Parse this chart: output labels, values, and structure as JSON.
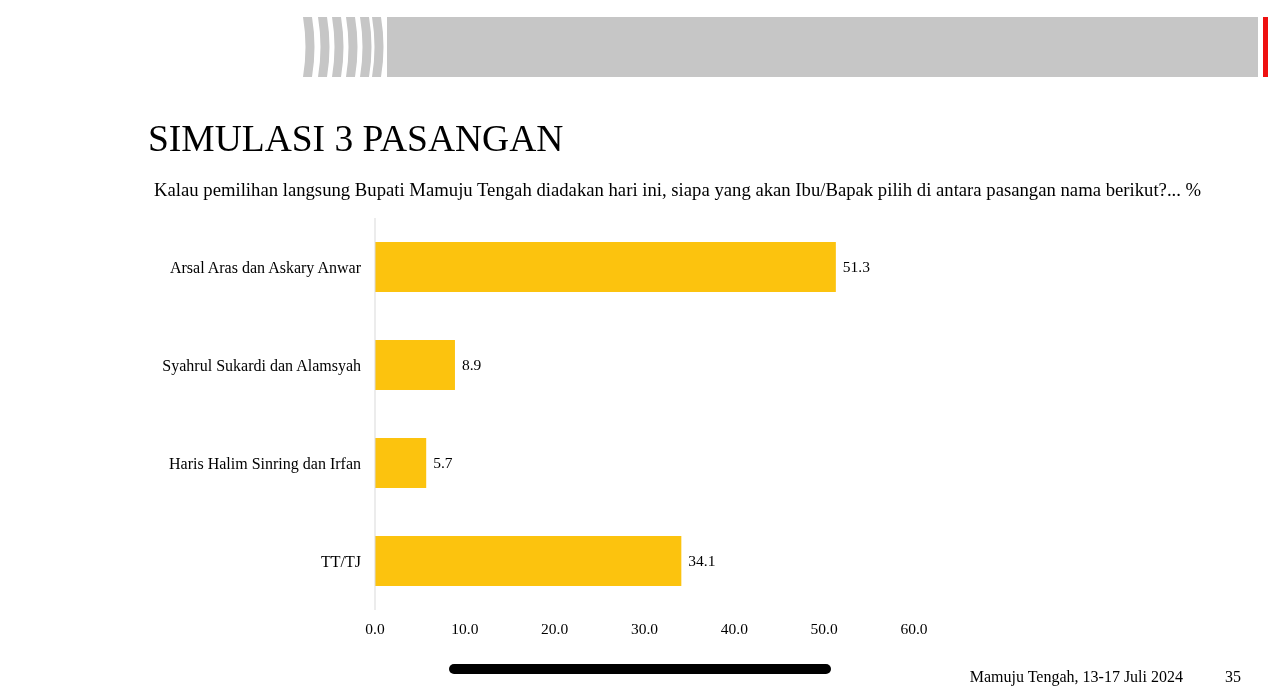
{
  "chart_data": {
    "type": "bar",
    "orientation": "horizontal",
    "title": "SIMULASI 3 PASANGAN",
    "subtitle": "Kalau pemilihan langsung Bupati Mamuju Tengah diadakan hari ini, siapa yang akan Ibu/Bapak pilih di antara pasangan nama berikut?... %",
    "categories": [
      "Arsal Aras dan Askary Anwar",
      "Syahrul Sukardi dan Alamsyah",
      "Haris Halim Sinring dan Irfan",
      "TT/TJ"
    ],
    "values": [
      51.3,
      8.9,
      5.7,
      34.1
    ],
    "color": "#fcc30e",
    "xlim": [
      0,
      60
    ],
    "xticks": [
      {
        "value": 0,
        "label": "0.0"
      },
      {
        "value": 10,
        "label": "10.0"
      },
      {
        "value": 20,
        "label": "20.0"
      },
      {
        "value": 30,
        "label": "30.0"
      },
      {
        "value": 40,
        "label": "40.0"
      },
      {
        "value": 50,
        "label": "50.0"
      },
      {
        "value": 60,
        "label": "60.0"
      }
    ],
    "data_labels": true,
    "grid": false,
    "annotations": [
      "Mamuju Tengah, 13-17 Juli 2024",
      "35"
    ]
  }
}
